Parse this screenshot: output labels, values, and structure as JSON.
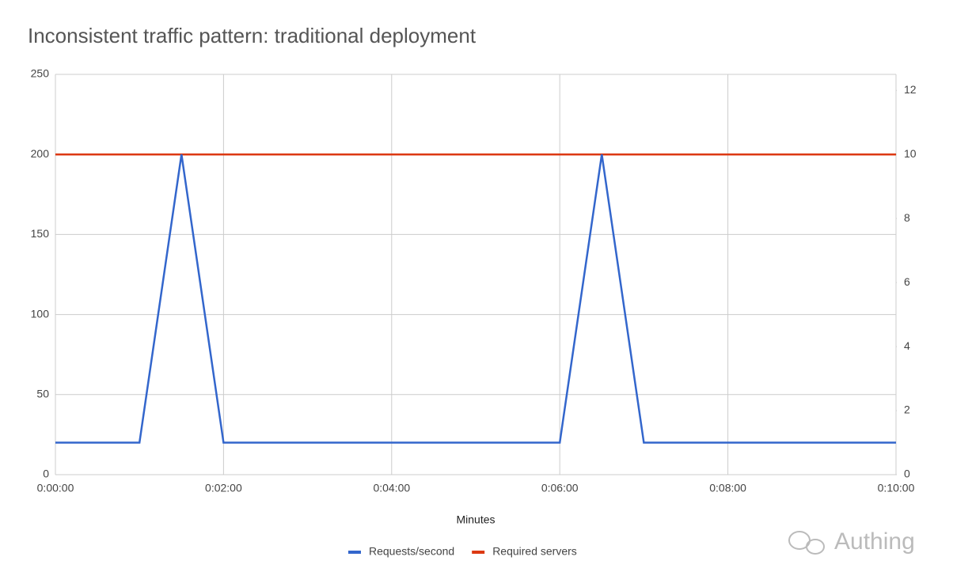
{
  "chart_data": {
    "type": "line",
    "title": "Inconsistent traffic pattern: traditional deployment",
    "x_label": "Minutes",
    "x": [
      0,
      60,
      90,
      120,
      360,
      390,
      420,
      600
    ],
    "xlim": [
      0,
      600
    ],
    "xticks": [
      {
        "value": 0,
        "label": "0:00:00"
      },
      {
        "value": 120,
        "label": "0:02:00"
      },
      {
        "value": 240,
        "label": "0:04:00"
      },
      {
        "value": 360,
        "label": "0:06:00"
      },
      {
        "value": 480,
        "label": "0:08:00"
      },
      {
        "value": 600,
        "label": "0:10:00"
      }
    ],
    "ylim": [
      0,
      250
    ],
    "yticks": [
      0,
      50,
      100,
      150,
      200,
      250
    ],
    "y2lim": [
      0,
      12.5
    ],
    "y2ticks": [
      0,
      2,
      4,
      6,
      8,
      10,
      12
    ],
    "grid": true,
    "legend": "bottom",
    "series": [
      {
        "name": "Requests/second",
        "color": "#3366cc",
        "values": [
          20,
          20,
          200,
          20,
          20,
          200,
          20,
          20
        ]
      },
      {
        "name": "Required servers",
        "color": "#dc3912",
        "axis": "y2",
        "values": [
          10,
          10,
          10,
          10,
          10,
          10,
          10,
          10
        ]
      }
    ],
    "watermark": "Authing"
  }
}
